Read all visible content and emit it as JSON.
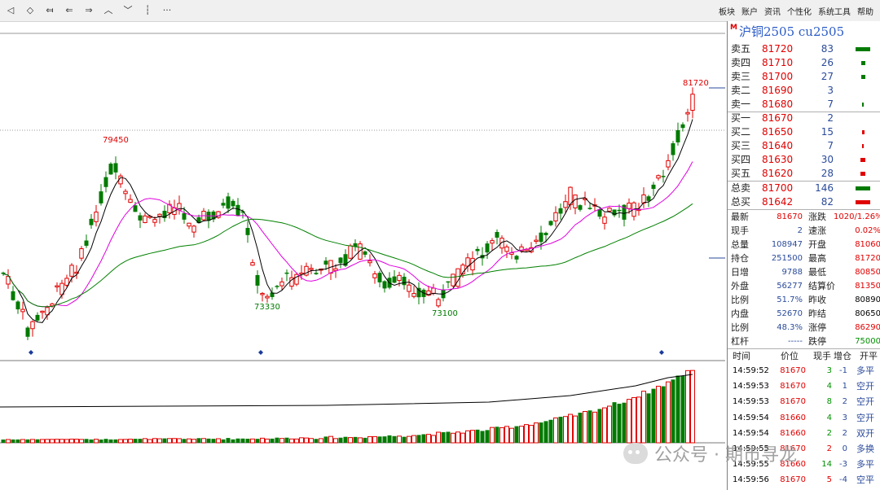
{
  "toolbar": {
    "icons": [
      "diamond-first-icon",
      "diamond-jump-icon",
      "double-left-icon",
      "left-arrow-icon",
      "right-arrow-icon",
      "up-chevron-icon",
      "down-chevron-icon",
      "vertical-span-icon",
      "more-icon"
    ],
    "icon_glyphs": [
      "◁",
      "◇",
      "⤆",
      "⇐",
      "⇒",
      "︿",
      "﹀",
      "┆",
      "···"
    ],
    "menu": [
      "板块",
      "账户",
      "资讯",
      "个性化",
      "系统工具",
      "帮助"
    ]
  },
  "chart": {
    "annotations": {
      "high": "79450",
      "low1": "73330",
      "low2": "73100",
      "last_high": "81720"
    },
    "colors": {
      "up": "#e00000",
      "down": "#007a00",
      "ma_short": "#000000",
      "ma_mid": "#e000e0",
      "ma_long": "#008000"
    }
  },
  "panel": {
    "marker": "M",
    "title": "沪铜2505  cu2505",
    "order_book": {
      "sells": [
        {
          "label": "卖五",
          "price": "81720",
          "vol": "83"
        },
        {
          "label": "卖四",
          "price": "81710",
          "vol": "26"
        },
        {
          "label": "卖三",
          "price": "81700",
          "vol": "27"
        },
        {
          "label": "卖二",
          "price": "81690",
          "vol": "3"
        },
        {
          "label": "卖一",
          "price": "81680",
          "vol": "7"
        }
      ],
      "buys": [
        {
          "label": "买一",
          "price": "81670",
          "vol": "2"
        },
        {
          "label": "买二",
          "price": "81650",
          "vol": "15"
        },
        {
          "label": "买三",
          "price": "81640",
          "vol": "7"
        },
        {
          "label": "买四",
          "price": "81630",
          "vol": "30"
        },
        {
          "label": "买五",
          "price": "81620",
          "vol": "28"
        }
      ],
      "totals": [
        {
          "label": "总卖",
          "price": "81700",
          "vol": "146"
        },
        {
          "label": "总买",
          "price": "81642",
          "vol": "82"
        }
      ]
    },
    "stats": [
      {
        "l1": "最新",
        "v1": "81670",
        "c1": "red",
        "l2": "涨跌",
        "v2": "1020/1.26%",
        "c2": "red"
      },
      {
        "l1": "现手",
        "v1": "2",
        "c1": "blue",
        "l2": "速涨",
        "v2": "0.02%",
        "c2": "red"
      },
      {
        "l1": "总量",
        "v1": "108947",
        "c1": "blue",
        "l2": "开盘",
        "v2": "81060",
        "c2": "red"
      },
      {
        "l1": "持仓",
        "v1": "251500",
        "c1": "blue",
        "l2": "最高",
        "v2": "81720",
        "c2": "red"
      },
      {
        "l1": "日增",
        "v1": "9788",
        "c1": "blue",
        "l2": "最低",
        "v2": "80850",
        "c2": "red"
      },
      {
        "l1": "外盘",
        "v1": "56277",
        "c1": "blue",
        "l2": "结算价",
        "v2": "81350",
        "c2": "red"
      },
      {
        "l1": "比例",
        "v1": "51.7%",
        "c1": "blue",
        "l2": "昨收",
        "v2": "80890",
        "c2": "blk"
      },
      {
        "l1": "内盘",
        "v1": "52670",
        "c1": "blue",
        "l2": "昨结",
        "v2": "80650",
        "c2": "blk"
      },
      {
        "l1": "比例",
        "v1": "48.3%",
        "c1": "blue",
        "l2": "涨停",
        "v2": "86290",
        "c2": "red"
      },
      {
        "l1": "杠杆",
        "v1": "-----",
        "c1": "blue",
        "l2": "跌停",
        "v2": "75000",
        "c2": "grn"
      }
    ],
    "ticks_header": [
      "时间",
      "价位",
      "现手",
      "增仓",
      "开平"
    ],
    "ticks": [
      {
        "time": "14:59:52",
        "price": "81670",
        "vol": "3",
        "chg": "-1",
        "kind": "多平",
        "pc": "red",
        "vc": "grn"
      },
      {
        "time": "14:59:53",
        "price": "81670",
        "vol": "4",
        "chg": "1",
        "kind": "空开",
        "pc": "red",
        "vc": "grn"
      },
      {
        "time": "14:59:53",
        "price": "81670",
        "vol": "8",
        "chg": "2",
        "kind": "空开",
        "pc": "red",
        "vc": "grn"
      },
      {
        "time": "14:59:54",
        "price": "81660",
        "vol": "4",
        "chg": "3",
        "kind": "空开",
        "pc": "red",
        "vc": "grn"
      },
      {
        "time": "14:59:54",
        "price": "81660",
        "vol": "2",
        "chg": "2",
        "kind": "双开",
        "pc": "red",
        "vc": "grn"
      },
      {
        "time": "14:59:55",
        "price": "81670",
        "vol": "2",
        "chg": "0",
        "kind": "多换",
        "pc": "red",
        "vc": "red"
      },
      {
        "time": "14:59:55",
        "price": "81660",
        "vol": "14",
        "chg": "-3",
        "kind": "多平",
        "pc": "red",
        "vc": "grn"
      },
      {
        "time": "14:59:56",
        "price": "81670",
        "vol": "5",
        "chg": "-4",
        "kind": "空平",
        "pc": "red",
        "vc": "red"
      }
    ]
  },
  "watermark": {
    "text": "公众号 · 期市寻龙"
  }
}
